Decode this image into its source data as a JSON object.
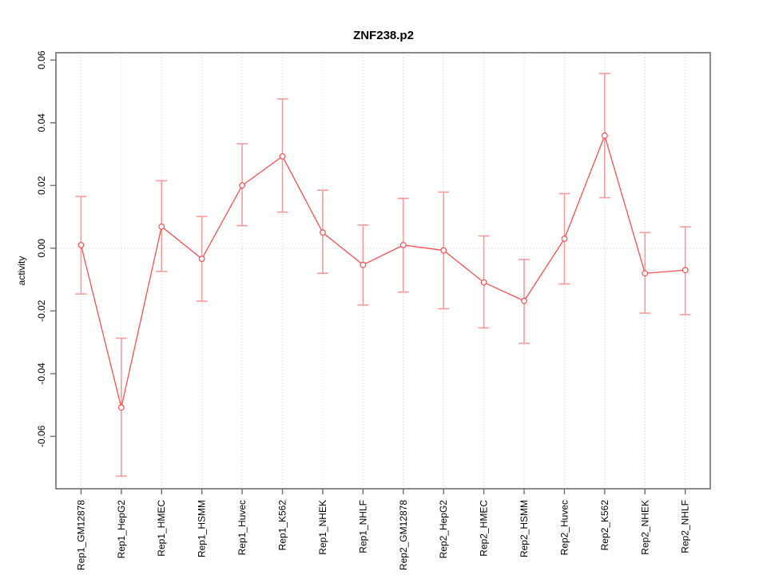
{
  "chart_data": {
    "type": "line",
    "title": "ZNF238.p2",
    "xlabel": "",
    "ylabel": "activity",
    "legend_position": "none",
    "marker": "open-circle",
    "error_bars": true,
    "categories": [
      "Rep1_GM12878",
      "Rep1_HepG2",
      "Rep1_HMEC",
      "Rep1_HSMM",
      "Rep1_Huvec",
      "Rep1_K562",
      "Rep1_NHEK",
      "Rep1_NHLF",
      "Rep2_GM12878",
      "Rep2_HepG2",
      "Rep2_HMEC",
      "Rep2_HSMM",
      "Rep2_Huvec",
      "Rep2_K562",
      "Rep2_NHEK",
      "Rep2_NHLF"
    ],
    "series": [
      {
        "name": "activity",
        "values": [
          0.001,
          -0.0508,
          0.0069,
          -0.0034,
          0.02,
          0.0293,
          0.005,
          -0.0053,
          0.001,
          -0.0007,
          -0.0109,
          -0.0168,
          0.003,
          0.0359,
          -0.008,
          -0.007
        ],
        "error_upper": [
          0.0165,
          -0.0287,
          0.0215,
          0.0101,
          0.0333,
          0.0476,
          0.0185,
          0.0074,
          0.0159,
          0.0179,
          0.0039,
          -0.0036,
          0.0174,
          0.0557,
          0.005,
          0.0068
        ],
        "error_lower": [
          -0.0146,
          -0.0727,
          -0.0074,
          -0.0169,
          0.0072,
          0.0115,
          -0.008,
          -0.0181,
          -0.014,
          -0.0193,
          -0.0254,
          -0.0303,
          -0.0114,
          0.0161,
          -0.0207,
          -0.0212
        ]
      }
    ],
    "yticks": [
      -0.06,
      -0.04,
      -0.02,
      0.0,
      0.02,
      0.04,
      0.06
    ],
    "ytick_labels": [
      "-0.06",
      "-0.04",
      "-0.02",
      "0.00",
      "0.02",
      "0.04",
      "0.06"
    ],
    "ylim": [
      -0.077,
      0.062
    ],
    "grid": {
      "vertical": "dotted line at each category",
      "horizontal": "dotted line at y = 0"
    },
    "colors": {
      "line": "#F85050",
      "error_bar": "#F89B9B",
      "grid": "#DCDCDC",
      "frame": "#6E6E6E",
      "text": "#000000",
      "background": "#FFFFFF"
    }
  }
}
